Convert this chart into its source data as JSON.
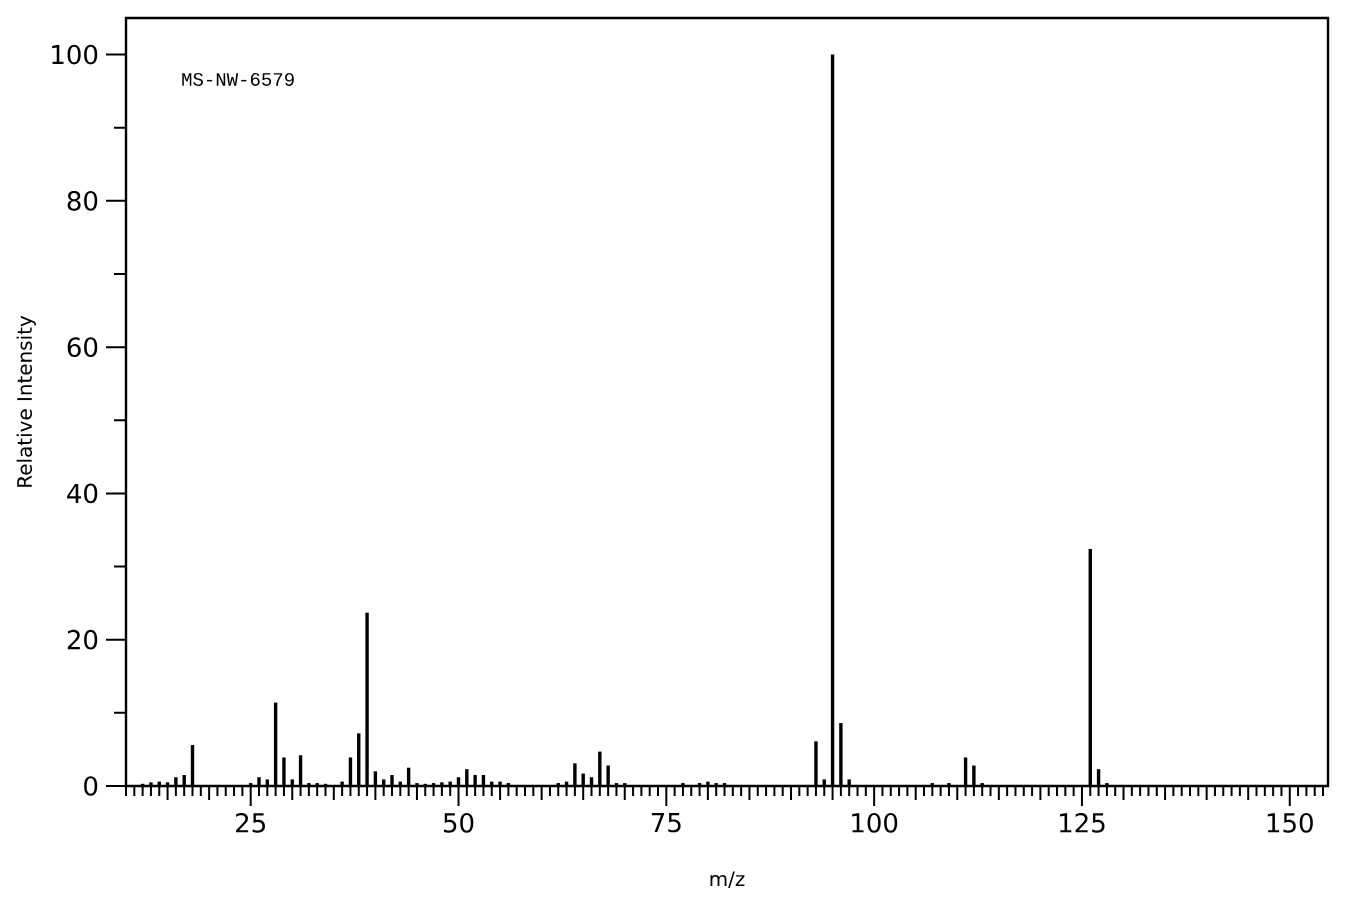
{
  "chart_data": {
    "type": "bar",
    "xlabel": "m/z",
    "ylabel": "Relative Intensity",
    "annotations": [
      "MS-NW-6579"
    ],
    "color": "#000000",
    "x": [
      12,
      13,
      14,
      15,
      16,
      17,
      18,
      25,
      26,
      27,
      28,
      29,
      30,
      31,
      32,
      33,
      34,
      36,
      37,
      38,
      39,
      40,
      41,
      42,
      43,
      44,
      45,
      46,
      47,
      48,
      49,
      50,
      51,
      52,
      53,
      54,
      55,
      56,
      62,
      63,
      64,
      65,
      66,
      67,
      68,
      69,
      70,
      77,
      79,
      80,
      81,
      82,
      93,
      94,
      95,
      96,
      97,
      107,
      109,
      111,
      112,
      113,
      126,
      127,
      128
    ],
    "values": [
      0.3,
      0.5,
      0.6,
      0.5,
      1.2,
      1.5,
      5.6,
      0.4,
      1.2,
      0.9,
      11.4,
      3.9,
      0.9,
      4.2,
      0.4,
      0.4,
      0.3,
      0.6,
      3.9,
      7.2,
      23.7,
      2.0,
      0.9,
      1.5,
      0.6,
      2.5,
      0.4,
      0.3,
      0.4,
      0.5,
      0.6,
      1.2,
      2.3,
      1.5,
      1.5,
      0.6,
      0.6,
      0.4,
      0.4,
      0.6,
      3.1,
      1.7,
      1.2,
      4.7,
      2.8,
      0.4,
      0.4,
      0.4,
      0.4,
      0.6,
      0.4,
      0.4,
      6.1,
      0.9,
      100,
      8.6,
      0.9,
      0.4,
      0.4,
      3.9,
      2.8,
      0.4,
      32.4,
      2.3,
      0.4
    ],
    "xlim": [
      10,
      154.6
    ],
    "ylim": [
      0,
      105
    ],
    "xticks": [
      {
        "value": 15,
        "label": null
      },
      {
        "value": 20,
        "label": null
      },
      25,
      {
        "value": 30,
        "label": null
      },
      {
        "value": 35,
        "label": null
      },
      {
        "value": 40,
        "label": null
      },
      {
        "value": 45,
        "label": null
      },
      50,
      {
        "value": 55,
        "label": null
      },
      {
        "value": 60,
        "label": null
      },
      {
        "value": 65,
        "label": null
      },
      {
        "value": 70,
        "label": null
      },
      75,
      {
        "value": 80,
        "label": null
      },
      {
        "value": 85,
        "label": null
      },
      {
        "value": 90,
        "label": null
      },
      {
        "value": 95,
        "label": null
      },
      100,
      {
        "value": 105,
        "label": null
      },
      {
        "value": 110,
        "label": null
      },
      {
        "value": 115,
        "label": null
      },
      {
        "value": 120,
        "label": null
      },
      125,
      {
        "value": 130,
        "label": null
      },
      {
        "value": 135,
        "label": null
      },
      {
        "value": 140,
        "label": null
      },
      {
        "value": 145,
        "label": null
      },
      150
    ],
    "yticks": [
      0,
      {
        "value": 10,
        "label": null
      },
      20,
      {
        "value": 30,
        "label": null
      },
      40,
      {
        "value": 50,
        "label": null
      },
      60,
      {
        "value": 70,
        "label": null
      },
      80,
      {
        "value": 90,
        "label": null
      },
      100
    ]
  }
}
